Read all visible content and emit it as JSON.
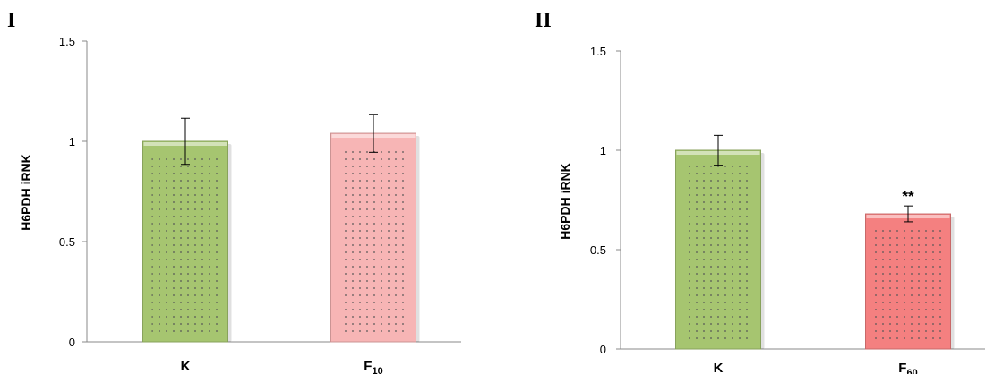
{
  "chart_data": [
    {
      "type": "bar",
      "panel_label": "I",
      "ylabel": "H6PDH iRNK",
      "xlabel": "",
      "ylim": [
        0,
        1.5
      ],
      "yticks": [
        "0",
        "0.5",
        "1",
        "1.5"
      ],
      "ytick_values": [
        0,
        0.5,
        1,
        1.5
      ],
      "categories": [
        {
          "base": "K",
          "sub": ""
        },
        {
          "base": "F",
          "sub": "10"
        }
      ],
      "values": [
        1.0,
        1.04
      ],
      "errors": [
        0.115,
        0.095
      ],
      "annotations": [
        "",
        ""
      ],
      "colors": [
        "#a6c570",
        "#f7b5b5"
      ]
    },
    {
      "type": "bar",
      "panel_label": "II",
      "ylabel": "H6PDH iRNK",
      "xlabel": "",
      "ylim": [
        0,
        1.5
      ],
      "yticks": [
        "0",
        "0.5",
        "1",
        "1.5"
      ],
      "ytick_values": [
        0,
        0.5,
        1,
        1.5
      ],
      "categories": [
        {
          "base": "K",
          "sub": ""
        },
        {
          "base": "F",
          "sub": "60"
        }
      ],
      "values": [
        1.0,
        0.68
      ],
      "errors": [
        0.075,
        0.04
      ],
      "annotations": [
        "",
        "**"
      ],
      "colors": [
        "#a6c570",
        "#f48080"
      ]
    }
  ]
}
